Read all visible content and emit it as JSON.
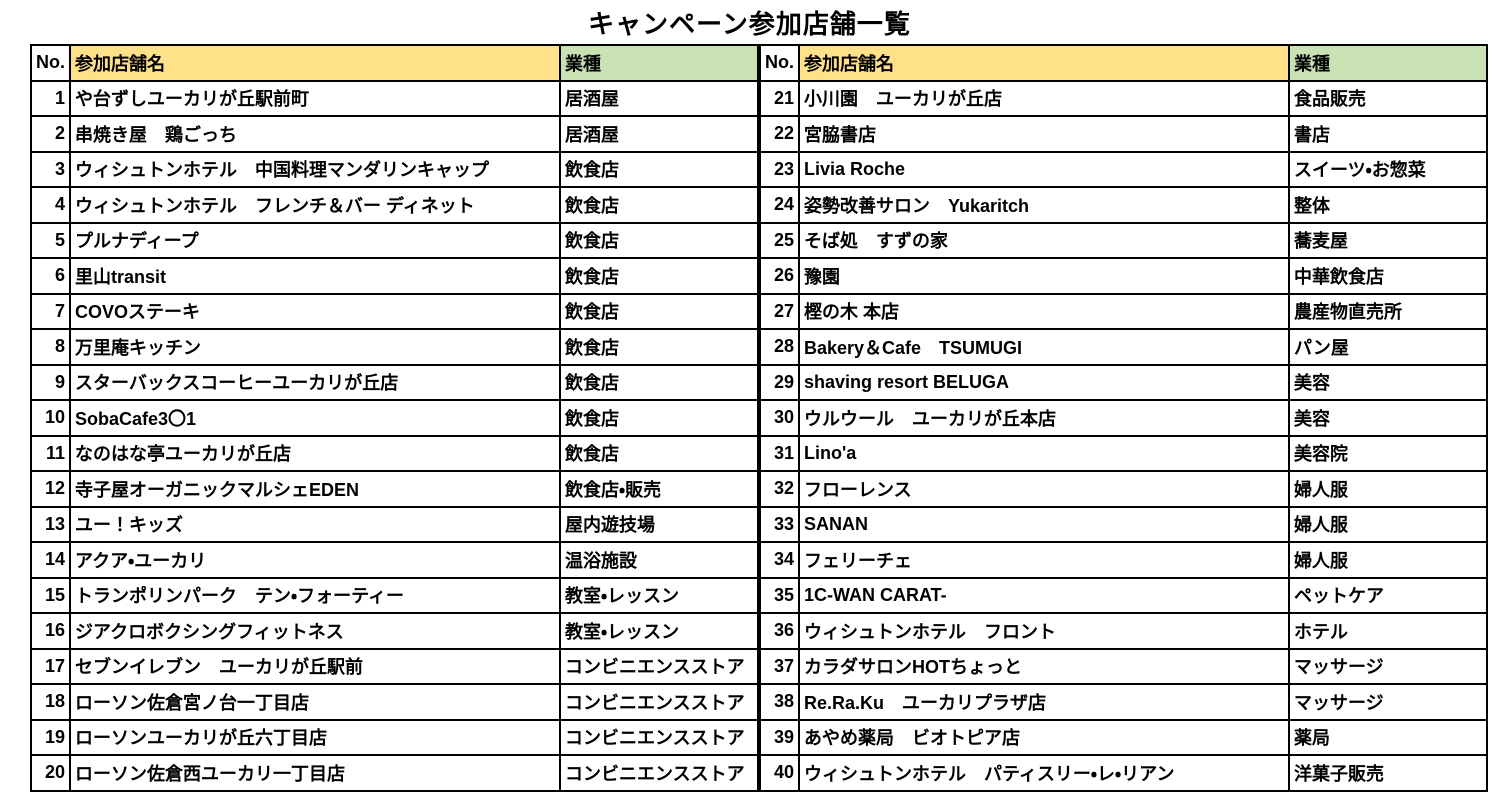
{
  "title": "キャンペーン参加店舗一覧",
  "columns": {
    "no": "No.",
    "name": "参加店舗名",
    "type": "業種"
  },
  "colors": {
    "header_name_bg": "#ffe18a",
    "header_type_bg": "#c8e2b4",
    "border": "#000000",
    "text": "#000000",
    "background": "#ffffff"
  },
  "tables": [
    {
      "rows": [
        {
          "no": "1",
          "name": "や台ずしユーカリが丘駅前町",
          "type": "居酒屋"
        },
        {
          "no": "2",
          "name": "串焼き屋　鶏ごっち",
          "type": "居酒屋"
        },
        {
          "no": "3",
          "name": "ウィシュトンホテル　中国料理マンダリンキャップ",
          "type": "飲食店"
        },
        {
          "no": "4",
          "name": "ウィシュトンホテル　フレンチ＆バー ディネット",
          "type": "飲食店"
        },
        {
          "no": "5",
          "name": "プルナディープ",
          "type": "飲食店"
        },
        {
          "no": "6",
          "name": "里山transit",
          "type": "飲食店"
        },
        {
          "no": "7",
          "name": "COVOステーキ",
          "type": "飲食店"
        },
        {
          "no": "8",
          "name": "万里庵キッチン",
          "type": "飲食店"
        },
        {
          "no": "9",
          "name": "スターバックスコーヒーユーカリが丘店",
          "type": "飲食店"
        },
        {
          "no": "10",
          "name": "SobaCafe3〇1",
          "type": "飲食店"
        },
        {
          "no": "11",
          "name": "なのはな亭ユーカリが丘店",
          "type": "飲食店"
        },
        {
          "no": "12",
          "name": "寺子屋オーガニックマルシェEDEN",
          "type": "飲食店・販売"
        },
        {
          "no": "13",
          "name": "ユー！キッズ",
          "type": "屋内遊技場"
        },
        {
          "no": "14",
          "name": "アクア・ユーカリ",
          "type": "温浴施設"
        },
        {
          "no": "15",
          "name": "トランポリンパーク　テン・フォーティー",
          "type": "教室・レッスン"
        },
        {
          "no": "16",
          "name": "ジアクロボクシングフィットネス",
          "type": "教室・レッスン"
        },
        {
          "no": "17",
          "name": "セブンイレブン　ユーカリが丘駅前",
          "type": "コンビニエンスストア"
        },
        {
          "no": "18",
          "name": "ローソン佐倉宮ノ台一丁目店",
          "type": "コンビニエンスストア"
        },
        {
          "no": "19",
          "name": "ローソンユーカリが丘六丁目店",
          "type": "コンビニエンスストア"
        },
        {
          "no": "20",
          "name": "ローソン佐倉西ユーカリ一丁目店",
          "type": "コンビニエンスストア"
        }
      ]
    },
    {
      "rows": [
        {
          "no": "21",
          "name": "小川園　ユーカリが丘店",
          "type": "食品販売"
        },
        {
          "no": "22",
          "name": "宮脇書店",
          "type": "書店"
        },
        {
          "no": "23",
          "name": "Livia Roche",
          "type": "スイーツ・お惣菜"
        },
        {
          "no": "24",
          "name": "姿勢改善サロン　Yukaritch",
          "type": "整体"
        },
        {
          "no": "25",
          "name": "そば処　すずの家",
          "type": "蕎麦屋"
        },
        {
          "no": "26",
          "name": "豫園",
          "type": "中華飲食店"
        },
        {
          "no": "27",
          "name": "樫の木 本店",
          "type": "農産物直売所"
        },
        {
          "no": "28",
          "name": "Bakery＆Cafe　TSUMUGI",
          "type": "パン屋"
        },
        {
          "no": "29",
          "name": "shaving resort BELUGA",
          "type": "美容"
        },
        {
          "no": "30",
          "name": "ウルウール　ユーカリが丘本店",
          "type": "美容"
        },
        {
          "no": "31",
          "name": "Lino'a",
          "type": "美容院"
        },
        {
          "no": "32",
          "name": "フローレンス",
          "type": "婦人服"
        },
        {
          "no": "33",
          "name": "SANAN",
          "type": "婦人服"
        },
        {
          "no": "34",
          "name": "フェリーチェ",
          "type": "婦人服"
        },
        {
          "no": "35",
          "name": "1C-WAN CARAT-",
          "type": "ペットケア"
        },
        {
          "no": "36",
          "name": "ウィシュトンホテル　フロント",
          "type": "ホテル"
        },
        {
          "no": "37",
          "name": "カラダサロンHOTちょっと",
          "type": "マッサージ"
        },
        {
          "no": "38",
          "name": "Re.Ra.Ku　ユーカリプラザ店",
          "type": "マッサージ"
        },
        {
          "no": "39",
          "name": "あやめ薬局　ビオトピア店",
          "type": "薬局"
        },
        {
          "no": "40",
          "name": "ウィシュトンホテル　パティスリー・レ・リアン",
          "type": "洋菓子販売"
        }
      ]
    }
  ]
}
